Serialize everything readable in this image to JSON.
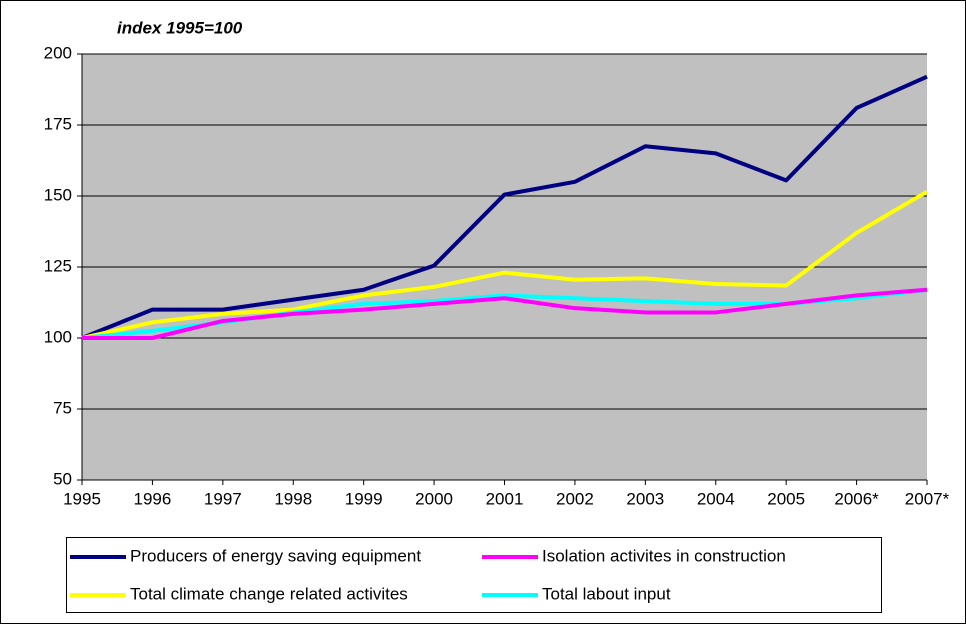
{
  "chart_data": {
    "type": "line",
    "title": "index 1995=100",
    "categories": [
      "1995",
      "1996",
      "1997",
      "1998",
      "1999",
      "2000",
      "2001",
      "2002",
      "2003",
      "2004",
      "2005",
      "2006*",
      "2007*"
    ],
    "series": [
      {
        "name": "Producers of energy saving equipment",
        "color": "#000080",
        "values": [
          100,
          110,
          110,
          113.5,
          117,
          125.5,
          150.5,
          155,
          167.5,
          165,
          155.5,
          181,
          192
        ]
      },
      {
        "name": "Isolation activites in construction",
        "color": "#ff00ff",
        "values": [
          100,
          100,
          106,
          108.5,
          110,
          112,
          114,
          110.5,
          109,
          109,
          112,
          115,
          117
        ]
      },
      {
        "name": "Total climate change related activites",
        "color": "#ffff00",
        "values": [
          100,
          105.5,
          108.5,
          110,
          115,
          118,
          123,
          120.5,
          121,
          119,
          118.5,
          137,
          151.5
        ]
      },
      {
        "name": "Total labout input",
        "color": "#00ffff",
        "values": [
          100,
          102.5,
          105.5,
          109,
          112,
          113,
          115,
          114,
          113,
          112,
          112,
          114,
          117
        ]
      }
    ],
    "ylim": [
      50,
      200
    ],
    "yticks": [
      50,
      75,
      100,
      125,
      150,
      175,
      200
    ],
    "grid": true,
    "legend": "bottom"
  }
}
